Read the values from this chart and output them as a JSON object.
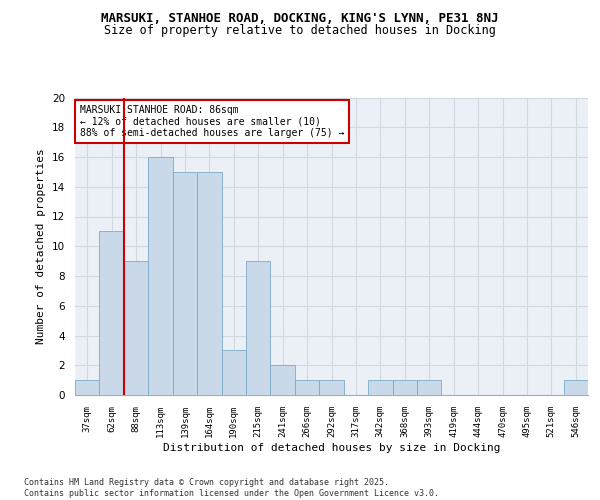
{
  "title1": "MARSUKI, STANHOE ROAD, DOCKING, KING'S LYNN, PE31 8NJ",
  "title2": "Size of property relative to detached houses in Docking",
  "xlabel": "Distribution of detached houses by size in Docking",
  "ylabel": "Number of detached properties",
  "categories": [
    "37sqm",
    "62sqm",
    "88sqm",
    "113sqm",
    "139sqm",
    "164sqm",
    "190sqm",
    "215sqm",
    "241sqm",
    "266sqm",
    "292sqm",
    "317sqm",
    "342sqm",
    "368sqm",
    "393sqm",
    "419sqm",
    "444sqm",
    "470sqm",
    "495sqm",
    "521sqm",
    "546sqm"
  ],
  "values": [
    1,
    11,
    9,
    16,
    15,
    15,
    3,
    9,
    2,
    1,
    1,
    0,
    1,
    1,
    1,
    0,
    0,
    0,
    0,
    0,
    1
  ],
  "bar_color": "#c9d9ea",
  "bar_edge_color": "#7aaac8",
  "property_line_color": "#cc0000",
  "annotation_text": "MARSUKI STANHOE ROAD: 86sqm\n← 12% of detached houses are smaller (10)\n88% of semi-detached houses are larger (75) →",
  "annotation_box_color": "#cc0000",
  "ylim": [
    0,
    20
  ],
  "yticks": [
    0,
    2,
    4,
    6,
    8,
    10,
    12,
    14,
    16,
    18,
    20
  ],
  "grid_color": "#d0d8e0",
  "bg_color": "#eaf0f6",
  "footer": "Contains HM Land Registry data © Crown copyright and database right 2025.\nContains public sector information licensed under the Open Government Licence v3.0."
}
